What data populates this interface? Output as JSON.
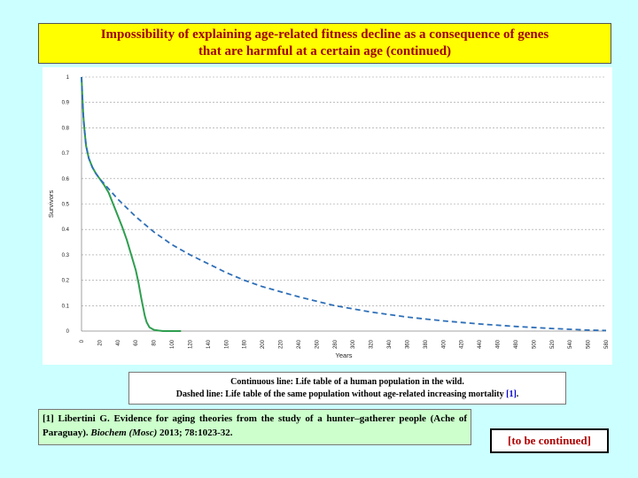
{
  "title": {
    "line1": "Impossibility of explaining age-related fitness decline as a consequence of genes",
    "line2": "that are harmful at a certain age (continued)"
  },
  "chart_data": {
    "type": "line",
    "title": "",
    "xlabel": "Years",
    "ylabel": "Survivors",
    "xlim": [
      0,
      580
    ],
    "ylim": [
      0,
      1
    ],
    "x_ticks": [
      0,
      20,
      40,
      60,
      80,
      100,
      120,
      140,
      160,
      180,
      200,
      220,
      240,
      260,
      280,
      300,
      320,
      340,
      360,
      380,
      400,
      420,
      440,
      460,
      480,
      500,
      520,
      540,
      560,
      580
    ],
    "y_ticks": [
      0,
      0.1,
      0.2,
      0.3,
      0.4,
      0.5,
      0.6,
      0.7,
      0.8,
      0.9,
      1
    ],
    "y_tick_labels": [
      "0",
      "0.1",
      "0.2",
      "0.3",
      "0.4",
      "0.5",
      "0.6",
      "0.7",
      "0.8",
      "0.9",
      "1"
    ],
    "grid": "horizontal dashed",
    "series": [
      {
        "style": "solid",
        "color": "#2e9e4f",
        "x": [
          0,
          1,
          2,
          3,
          5,
          8,
          12,
          16,
          20,
          25,
          30,
          35,
          40,
          45,
          50,
          55,
          60,
          63,
          66,
          70,
          72,
          75,
          80,
          85,
          90,
          100,
          110
        ],
        "y": [
          1.0,
          0.92,
          0.85,
          0.8,
          0.73,
          0.68,
          0.645,
          0.62,
          0.6,
          0.575,
          0.545,
          0.5,
          0.455,
          0.41,
          0.36,
          0.3,
          0.24,
          0.19,
          0.13,
          0.06,
          0.035,
          0.015,
          0.005,
          0.002,
          0.0,
          0.0,
          0.0
        ]
      },
      {
        "style": "dashed",
        "color": "#2e6fb8",
        "x": [
          0,
          1,
          2,
          3,
          5,
          8,
          12,
          16,
          20,
          25,
          30,
          40,
          60,
          80,
          100,
          120,
          140,
          160,
          180,
          200,
          240,
          280,
          320,
          360,
          400,
          440,
          480,
          520,
          560,
          580
        ],
        "y": [
          1.0,
          0.92,
          0.85,
          0.8,
          0.73,
          0.68,
          0.645,
          0.62,
          0.6,
          0.58,
          0.56,
          0.52,
          0.45,
          0.39,
          0.34,
          0.3,
          0.265,
          0.23,
          0.2,
          0.175,
          0.135,
          0.1,
          0.075,
          0.055,
          0.04,
          0.028,
          0.018,
          0.01,
          0.004,
          0.002
        ]
      }
    ]
  },
  "caption": {
    "line1": "Continuous line: Life table of a human population in the wild.",
    "line2_text": "Dashed line: Life table of the same population without age-related increasing mortality ",
    "line2_ref": "[1]",
    "line2_end": "."
  },
  "reference": {
    "prefix": "[1] Libertini G. Evidence for aging theories from the study of a hunter–gatherer people (Ache of Paraguay). ",
    "journal": "Biochem (Mosc)",
    "suffix": " 2013; 78:1023-32."
  },
  "continued": "[to be continued]"
}
